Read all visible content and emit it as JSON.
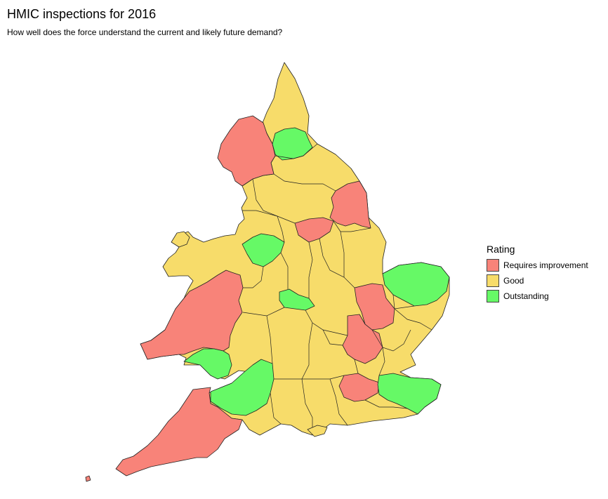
{
  "title": "HMIC inspections for 2016",
  "subtitle": "How well does the force understand the current and likely future demand?",
  "legend": {
    "title": "Rating",
    "items": [
      {
        "label": "Requires improvement",
        "color": "#f88379"
      },
      {
        "label": "Good",
        "color": "#f7dc6a"
      },
      {
        "label": "Outstanding",
        "color": "#66f966"
      }
    ]
  },
  "colors": {
    "requires_improvement": "#f88379",
    "good": "#f7dc6a",
    "outstanding": "#66f966",
    "border": "#222222"
  }
}
